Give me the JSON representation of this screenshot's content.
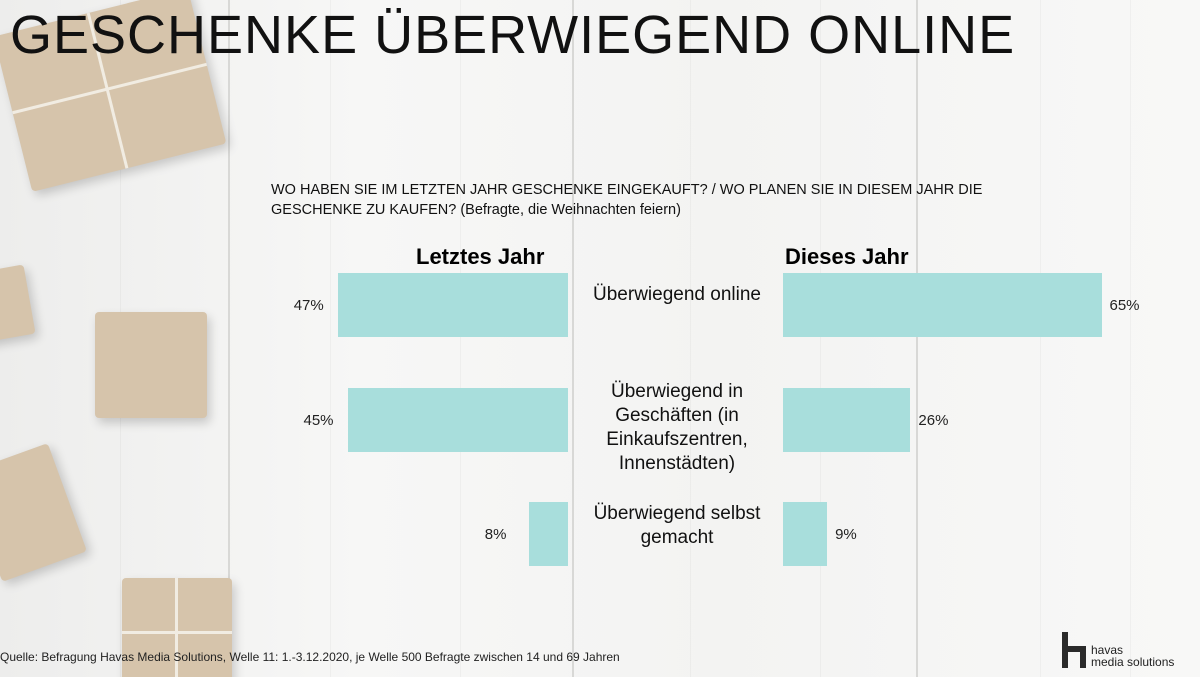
{
  "title": "GESCHENKE ÜBERWIEGEND ONLINE",
  "question": "WO HABEN SIE IM LETZTEN JAHR GESCHENKE EINGEKAUFT? / WO PLANEN SIE IN DIESEM JAHR DIE GESCHENKE ZU KAUFEN? (Befragte, die Weihnachten feiern)",
  "chart_data": {
    "type": "bar",
    "orientation": "horizontal-butterfly",
    "categories": [
      "Überwiegend online",
      "Überwiegend in Geschäften (in Einkaufszentren, Innenstädten)",
      "Überwiegend selbst gemacht"
    ],
    "series": [
      {
        "name": "Letztes Jahr",
        "values": [
          47,
          45,
          8
        ],
        "labels": [
          "47%",
          "45%",
          "8%"
        ],
        "color": "#a8dedc"
      },
      {
        "name": "Dieses Jahr",
        "values": [
          65,
          26,
          9
        ],
        "labels": [
          "65%",
          "26%",
          "9%"
        ],
        "color": "#a8dedc"
      }
    ],
    "unit": "%",
    "grid": false,
    "legend": "none"
  },
  "source": "Quelle: Befragung Havas Media Solutions, Welle 11: 1.-3.12.2020, je Welle 500 Befragte zwischen 14 und 69 Jahren",
  "logo": {
    "line1": "havas",
    "line2": "media solutions",
    "icon": "havas-h-icon"
  },
  "colors": {
    "bar": "#a8dedc",
    "text": "#111111"
  }
}
